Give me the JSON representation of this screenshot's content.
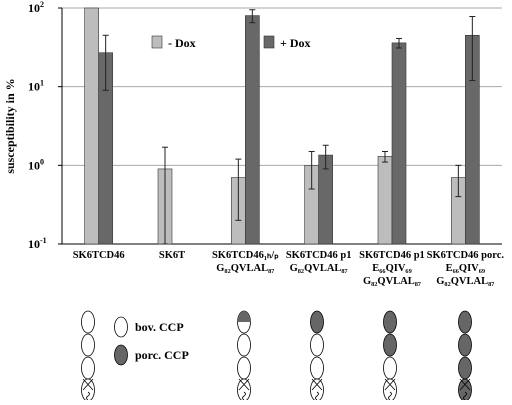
{
  "chart_data": {
    "type": "bar",
    "y_label": "susceptibility in %",
    "log_scale": true,
    "grid": true,
    "legend_position": "top",
    "ylim": [
      0.1,
      100
    ],
    "yticks": [
      {
        "value": 0.1,
        "label": "10",
        "exponent": "-1"
      },
      {
        "value": 1,
        "label": "10",
        "exponent": "0"
      },
      {
        "value": 10,
        "label": "10",
        "exponent": "1"
      },
      {
        "value": 100,
        "label": "10",
        "exponent": "2"
      }
    ],
    "categories": [
      [
        "SK6TCD46"
      ],
      [
        "SK6T"
      ],
      [
        "SK6TCD46₁ₕ/ₚ",
        "G₈₂QVLAL₈₇"
      ],
      [
        "SK6TCD46 p1",
        "G₈₂QVLAL₈₇"
      ],
      [
        "SK6TCD46 p1",
        "E₆₆QIV₆₉",
        "G₈₂QVLAL₈₇"
      ],
      [
        "SK6TCD46 porc.",
        "E₆₆QIV₆₉",
        "G₈₂QVLAL₈₇"
      ]
    ],
    "series": [
      {
        "name": "- Dox",
        "color": "#bdbdbd",
        "values": [
          100,
          0.9,
          0.7,
          1.0,
          1.3,
          0.7
        ],
        "errors": [
          null,
          0.8,
          0.5,
          0.5,
          0.2,
          0.3
        ]
      },
      {
        "name": "+ Dox",
        "color": "#686868",
        "values": [
          27,
          null,
          80,
          1.35,
          36,
          45
        ],
        "errors": [
          18,
          null,
          15,
          0.45,
          5,
          33
        ]
      }
    ]
  },
  "diagram": {
    "legend": [
      "bov.  CCP",
      "porc. CCP"
    ]
  }
}
